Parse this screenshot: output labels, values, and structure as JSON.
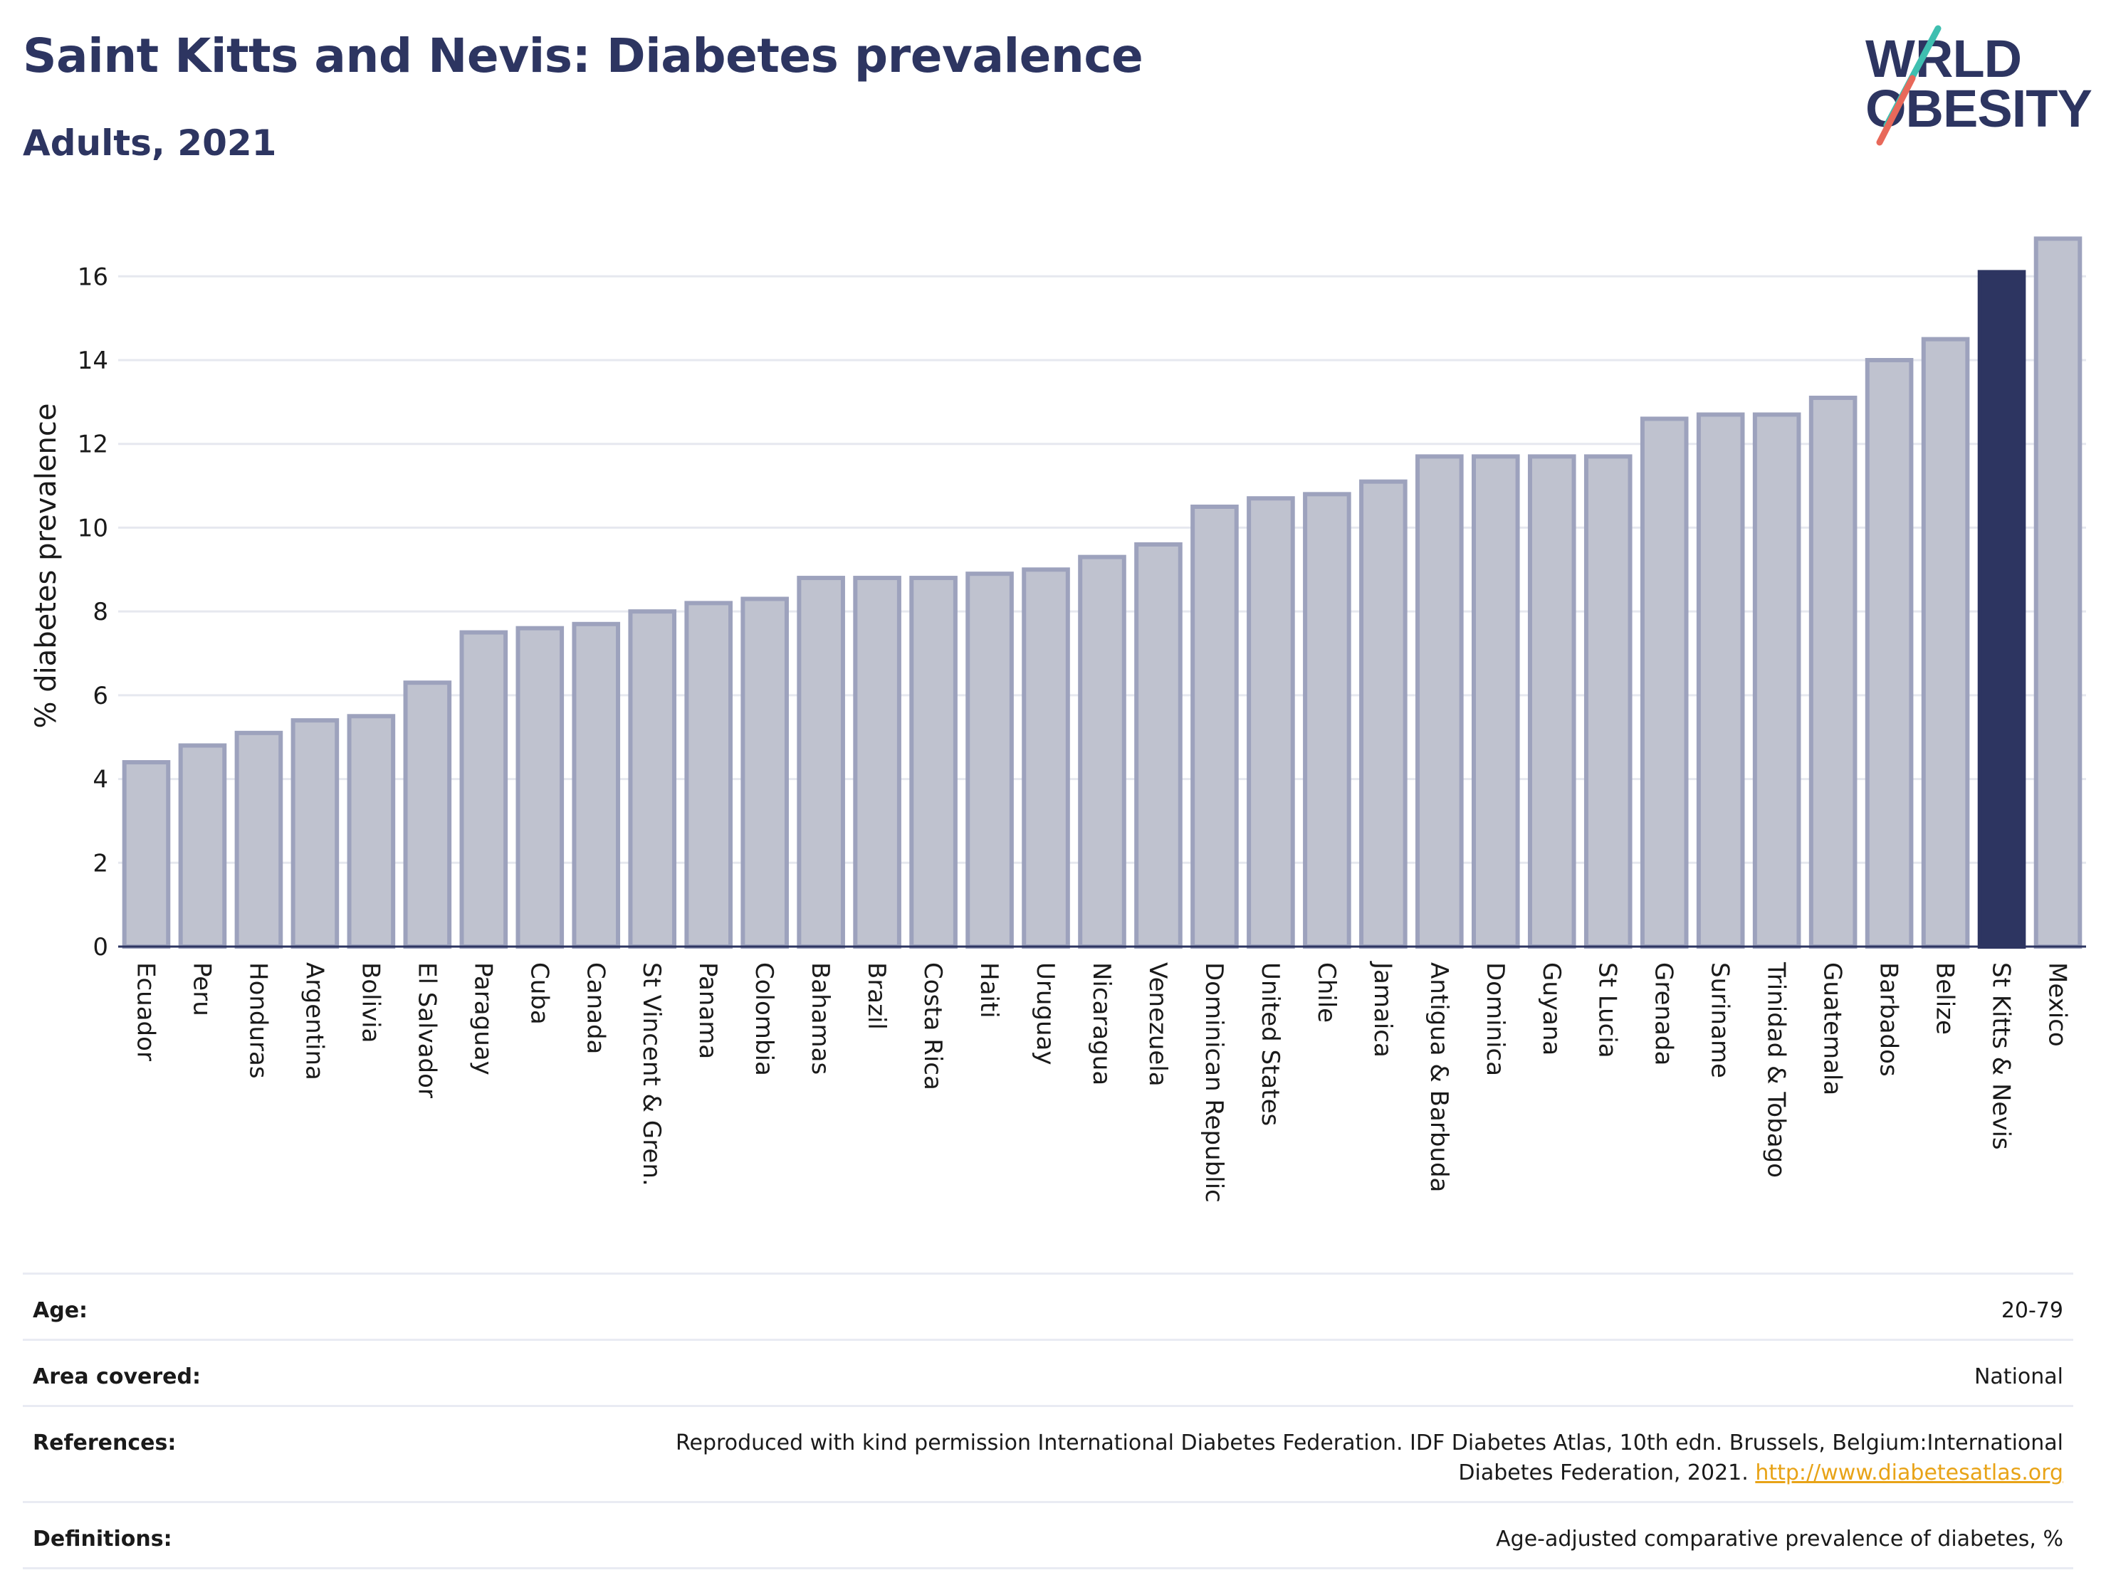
{
  "header": {
    "title": "Saint Kitts and Nevis: Diabetes prevalence",
    "subtitle": "Adults, 2021",
    "logo_line1": "W∕RLD",
    "logo_line2": "OBESITY"
  },
  "chart_data": {
    "type": "bar",
    "title": "Saint Kitts and Nevis: Diabetes prevalence",
    "subtitle": "Adults, 2021",
    "xlabel": "",
    "ylabel": "% diabetes prevalence",
    "ylim": [
      0,
      17.5
    ],
    "yticks": [
      0,
      2,
      4,
      6,
      8,
      10,
      12,
      14,
      16
    ],
    "grid": true,
    "highlight": "St Kitts & Nevis",
    "colors": {
      "bar_fill": "#bfc2cf",
      "bar_stroke": "#9da2bd",
      "highlight": "#2d3561",
      "grid": "#e6e8ef",
      "axis": "#2d3561"
    },
    "categories": [
      "Ecuador",
      "Peru",
      "Honduras",
      "Argentina",
      "Bolivia",
      "El Salvador",
      "Paraguay",
      "Cuba",
      "Canada",
      "St Vincent & Gren.",
      "Panama",
      "Colombia",
      "Bahamas",
      "Brazil",
      "Costa Rica",
      "Haiti",
      "Uruguay",
      "Nicaragua",
      "Venezuela",
      "Dominican Republic",
      "United States",
      "Chile",
      "Jamaica",
      "Antigua & Barbuda",
      "Dominica",
      "Guyana",
      "St Lucia",
      "Grenada",
      "Suriname",
      "Trinidad & Tobago",
      "Guatemala",
      "Barbados",
      "Belize",
      "St Kitts & Nevis",
      "Mexico"
    ],
    "values": [
      4.4,
      4.8,
      5.1,
      5.4,
      5.5,
      6.3,
      7.5,
      7.6,
      7.7,
      8.0,
      8.2,
      8.3,
      8.8,
      8.8,
      8.8,
      8.9,
      9.0,
      9.3,
      9.6,
      10.5,
      10.7,
      10.8,
      11.1,
      11.7,
      11.7,
      11.7,
      11.7,
      12.6,
      12.7,
      12.7,
      13.1,
      14.0,
      14.5,
      16.1,
      16.9
    ]
  },
  "info": {
    "age_label": "Age:",
    "age_value": "20-79",
    "area_label": "Area covered:",
    "area_value": "National",
    "references_label": "References:",
    "references_text": "Reproduced with kind permission International Diabetes Federation.  IDF Diabetes Atlas, 10th edn. Brussels, Belgium:International Diabetes Federation, 2021. ",
    "references_link": "http://www.diabetesatlas.org",
    "definitions_label": "Definitions:",
    "definitions_value": "Age-adjusted comparative prevalence of diabetes, %"
  }
}
